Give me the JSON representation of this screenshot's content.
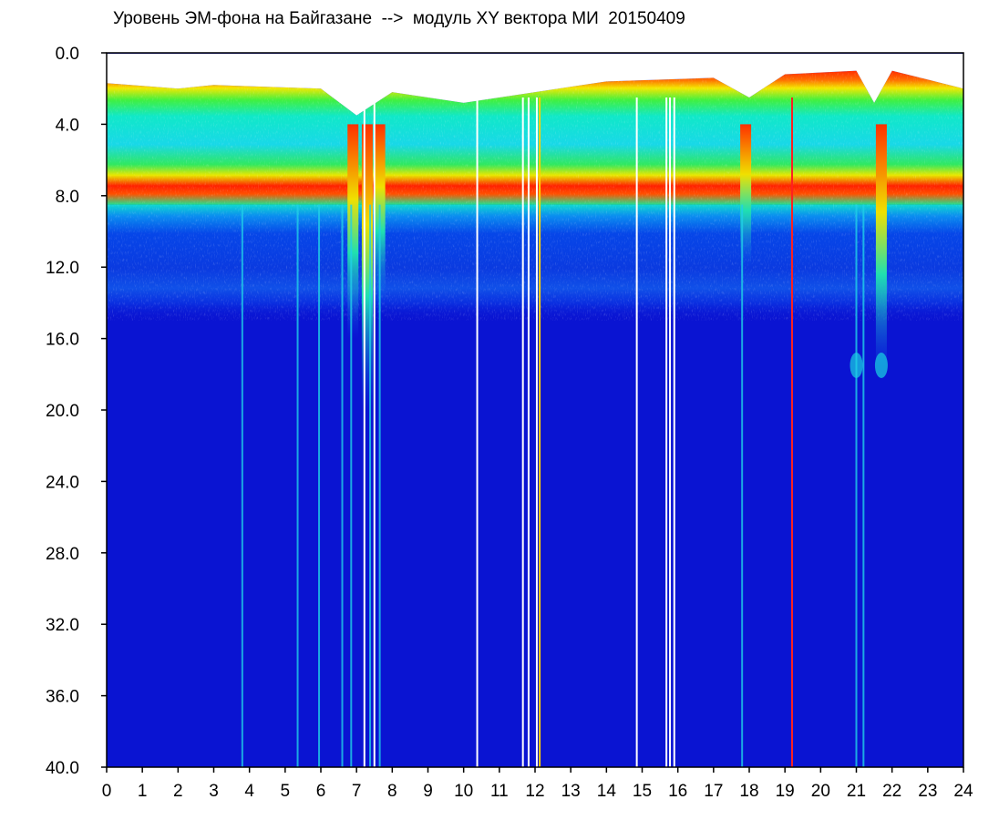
{
  "chart_data": {
    "type": "heatmap",
    "title": "Уровень ЭМ-фона на Байгазане  -->  модуль XY вектора МИ  20150409",
    "xlabel": "",
    "ylabel": "",
    "xlim": [
      0,
      24
    ],
    "ylim": [
      0.0,
      40.0
    ],
    "y_inverted": true,
    "x_ticks": [
      "0",
      "1",
      "2",
      "3",
      "4",
      "5",
      "6",
      "7",
      "8",
      "9",
      "10",
      "11",
      "12",
      "13",
      "14",
      "15",
      "16",
      "17",
      "18",
      "19",
      "20",
      "21",
      "22",
      "23",
      "24"
    ],
    "y_ticks": [
      "0.0",
      "4.0",
      "8.0",
      "12.0",
      "16.0",
      "20.0",
      "24.0",
      "28.0",
      "32.0",
      "36.0",
      "40.0"
    ],
    "colormap": [
      "#0000c8",
      "#0a2af0",
      "#00aaff",
      "#00e0e8",
      "#00f000",
      "#f0f000",
      "#ff0000",
      "#ffffff"
    ],
    "background_color": "#0a14d2",
    "grid": false,
    "legend": "none",
    "upper_band_y": [
      1.5,
      8.5
    ],
    "transition_band_y": [
      8.5,
      15.0
    ],
    "upper_band_top_y": [
      [
        0,
        1.7
      ],
      [
        2,
        2.0
      ],
      [
        3,
        1.8
      ],
      [
        6,
        2.0
      ],
      [
        7,
        3.5
      ],
      [
        8,
        2.2
      ],
      [
        10,
        2.8
      ],
      [
        12,
        2.2
      ],
      [
        14,
        1.6
      ],
      [
        17,
        1.4
      ],
      [
        18,
        2.5
      ],
      [
        19,
        1.2
      ],
      [
        21,
        1.0
      ],
      [
        21.5,
        2.8
      ],
      [
        22,
        1.0
      ],
      [
        24,
        2.0
      ]
    ],
    "dropout_lines_x": [
      7.22,
      7.5,
      10.38,
      11.66,
      11.82,
      12.05,
      14.85,
      15.68,
      15.78,
      15.9
    ],
    "hot_lines_x": [
      12.13,
      19.2
    ],
    "cyan_streaks_x": [
      3.8,
      5.35,
      5.95,
      6.6,
      6.85,
      7.38,
      7.65,
      17.8,
      21.0,
      21.2
    ],
    "deep_dips": [
      {
        "x": 6.9,
        "y_max": 16.0
      },
      {
        "x": 7.3,
        "y_max": 20.0
      },
      {
        "x": 7.65,
        "y_max": 14.0
      },
      {
        "x": 17.9,
        "y_max": 12.0
      },
      {
        "x": 21.7,
        "y_max": 18.0
      }
    ],
    "side_blobs": [
      {
        "x": 21.0,
        "y": 17.5
      },
      {
        "x": 21.7,
        "y": 17.5
      }
    ]
  }
}
